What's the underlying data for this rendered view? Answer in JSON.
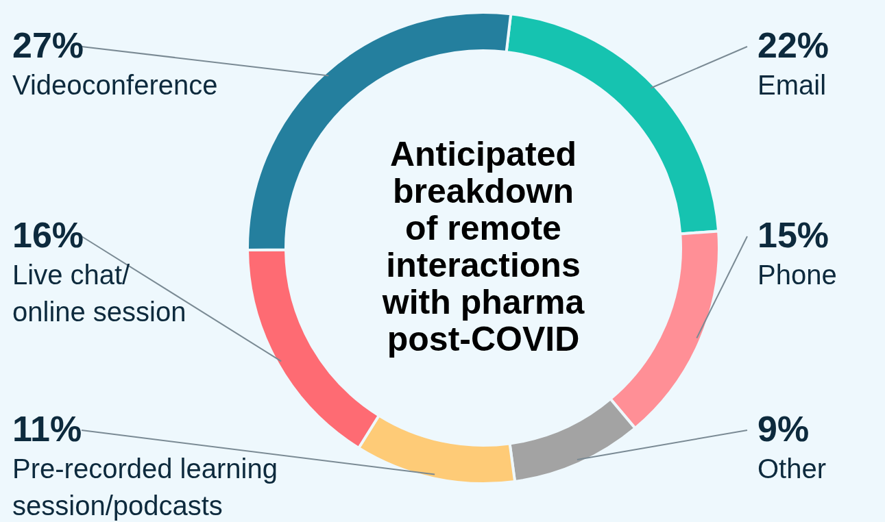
{
  "chart_data": {
    "type": "donut",
    "title": "Anticipated breakdown of remote interactions with pharma post-COVID",
    "categories": [
      "Email",
      "Phone",
      "Other",
      "Pre-recorded learning\nsession/podcasts",
      "Live chat/\nonline session",
      "Videoconference"
    ],
    "values": [
      22,
      15,
      9,
      11,
      16,
      27
    ],
    "value_labels": [
      "22%",
      "15%",
      "9%",
      "11%",
      "16%",
      "27%"
    ],
    "colors": [
      "#16c3b0",
      "#ff8f96",
      "#a3a3a3",
      "#fecb77",
      "#fe6b73",
      "#247f9e"
    ]
  }
}
